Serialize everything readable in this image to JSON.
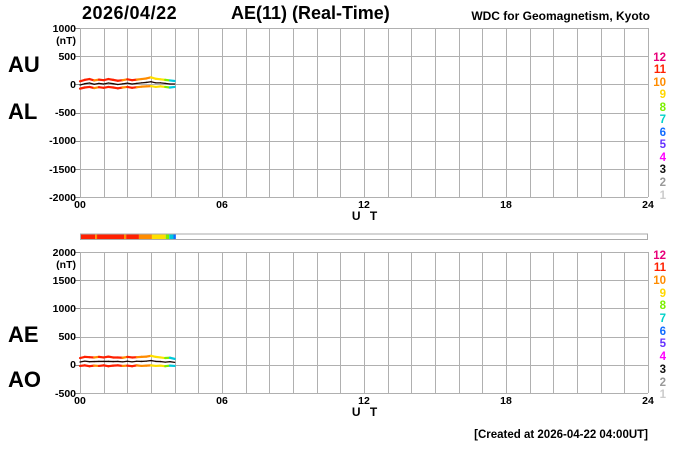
{
  "header": {
    "date": "2026/04/22",
    "title": "AE(11) (Real-Time)",
    "source": "WDC for Geomagnetism, Kyoto"
  },
  "footer": {
    "created_note": "[Created at 2026-04-22 04:00UT]"
  },
  "colors": {
    "grid": "#b0b0b0",
    "axis_tick": "#8c8c8c",
    "trace_overlap": "#1d0600",
    "bar_border": "#aaaaaa",
    "bar_fill": "#ffffff",
    "station_legend": [
      {
        "count": "12",
        "color": "#e8007a"
      },
      {
        "count": "11",
        "color": "#ff2000"
      },
      {
        "count": "10",
        "color": "#ff8c00"
      },
      {
        "count": "9",
        "color": "#ffd700"
      },
      {
        "count": "8",
        "color": "#7cf000"
      },
      {
        "count": "7",
        "color": "#00d2c8"
      },
      {
        "count": "6",
        "color": "#0f6bff"
      },
      {
        "count": "5",
        "color": "#6633ff"
      },
      {
        "count": "4",
        "color": "#ff00ff"
      },
      {
        "count": "3",
        "color": "#111111"
      },
      {
        "count": "2",
        "color": "#999999"
      },
      {
        "count": "1",
        "color": "#cccccc"
      }
    ]
  },
  "stations_bar": {
    "description": "number of available stations vs UT hour",
    "segments": [
      {
        "from": 0.0,
        "to": 0.64,
        "color": "#ff2000"
      },
      {
        "from": 0.64,
        "to": 0.72,
        "color": "#ff8c00"
      },
      {
        "from": 0.72,
        "to": 1.86,
        "color": "#ff2000"
      },
      {
        "from": 1.86,
        "to": 1.95,
        "color": "#ff8c00"
      },
      {
        "from": 1.95,
        "to": 2.49,
        "color": "#ff2000"
      },
      {
        "from": 2.49,
        "to": 3.04,
        "color": "#ff8c00"
      },
      {
        "from": 3.04,
        "to": 3.62,
        "color": "#ffe000"
      },
      {
        "from": 3.62,
        "to": 3.77,
        "color": "#7cf000"
      },
      {
        "from": 3.77,
        "to": 3.95,
        "color": "#00c8dc"
      },
      {
        "from": 3.95,
        "to": 4.05,
        "color": "#0f6bff"
      }
    ]
  },
  "chart_data": {
    "type": "line",
    "title": "AE(11) (Real-Time)",
    "date": "2026/04/22",
    "x_unit": "hours UT",
    "xlim": [
      0,
      24
    ],
    "data_end_hour": 4.05,
    "panels": [
      {
        "indices": "AU / AL",
        "unit": "(nT)",
        "ylim": [
          -2000,
          1000
        ],
        "ystep": 500,
        "yticks": [
          "1000",
          "500",
          "0",
          "-500",
          "-1000",
          "-1500",
          "-2000"
        ],
        "xticks": [
          {
            "h": 0,
            "label": "00"
          },
          {
            "h": 6,
            "label": "06"
          },
          {
            "h": 12,
            "label": "12"
          },
          {
            "h": 18,
            "label": "18"
          },
          {
            "h": 24,
            "label": "24"
          }
        ],
        "xlabel": "U T",
        "series": [
          {
            "name": "AU",
            "points": [
              [
                0,
                55
              ],
              [
                0.2,
                80
              ],
              [
                0.4,
                95
              ],
              [
                0.6,
                70
              ],
              [
                0.8,
                85
              ],
              [
                1,
                75
              ],
              [
                1.2,
                95
              ],
              [
                1.4,
                80
              ],
              [
                1.6,
                65
              ],
              [
                1.8,
                75
              ],
              [
                2,
                90
              ],
              [
                2.2,
                75
              ],
              [
                2.4,
                85
              ],
              [
                2.6,
                95
              ],
              [
                2.8,
                105
              ],
              [
                3,
                125
              ],
              [
                3.2,
                100
              ],
              [
                3.4,
                90
              ],
              [
                3.6,
                80
              ],
              [
                3.8,
                70
              ],
              [
                4,
                60
              ]
            ]
          },
          {
            "name": "AL",
            "points": [
              [
                0,
                -75
              ],
              [
                0.2,
                -55
              ],
              [
                0.4,
                -45
              ],
              [
                0.6,
                -65
              ],
              [
                0.8,
                -50
              ],
              [
                1,
                -60
              ],
              [
                1.2,
                -45
              ],
              [
                1.4,
                -55
              ],
              [
                1.6,
                -70
              ],
              [
                1.8,
                -55
              ],
              [
                2,
                -45
              ],
              [
                2.2,
                -60
              ],
              [
                2.4,
                -50
              ],
              [
                2.6,
                -40
              ],
              [
                2.8,
                -35
              ],
              [
                3,
                -30
              ],
              [
                3.2,
                -45
              ],
              [
                3.4,
                -35
              ],
              [
                3.6,
                -45
              ],
              [
                3.8,
                -55
              ],
              [
                4,
                -45
              ]
            ]
          }
        ]
      },
      {
        "indices": "AE / AO",
        "unit": "(nT)",
        "ylim": [
          -500,
          2000
        ],
        "ystep": 500,
        "yticks": [
          "2000",
          "1500",
          "1000",
          "500",
          "0",
          "-500"
        ],
        "xticks": [
          {
            "h": 0,
            "label": "00"
          },
          {
            "h": 6,
            "label": "06"
          },
          {
            "h": 12,
            "label": "12"
          },
          {
            "h": 18,
            "label": "18"
          },
          {
            "h": 24,
            "label": "24"
          }
        ],
        "xlabel": "U T",
        "series": [
          {
            "name": "AE",
            "points": [
              [
                0,
                120
              ],
              [
                0.2,
                140
              ],
              [
                0.4,
                135
              ],
              [
                0.6,
                130
              ],
              [
                0.8,
                140
              ],
              [
                1,
                130
              ],
              [
                1.2,
                145
              ],
              [
                1.4,
                130
              ],
              [
                1.6,
                130
              ],
              [
                1.8,
                125
              ],
              [
                2,
                140
              ],
              [
                2.2,
                130
              ],
              [
                2.4,
                135
              ],
              [
                2.6,
                140
              ],
              [
                2.8,
                145
              ],
              [
                3,
                160
              ],
              [
                3.2,
                140
              ],
              [
                3.4,
                130
              ],
              [
                3.6,
                120
              ],
              [
                3.8,
                125
              ],
              [
                4,
                105
              ]
            ]
          },
          {
            "name": "AO",
            "points": [
              [
                0,
                -20
              ],
              [
                0.2,
                -10
              ],
              [
                0.4,
                -25
              ],
              [
                0.6,
                -15
              ],
              [
                0.8,
                -20
              ],
              [
                1,
                -10
              ],
              [
                1.2,
                -25
              ],
              [
                1.4,
                -15
              ],
              [
                1.6,
                -10
              ],
              [
                1.8,
                -20
              ],
              [
                2,
                -15
              ],
              [
                2.2,
                -25
              ],
              [
                2.4,
                -10
              ],
              [
                2.6,
                -20
              ],
              [
                2.8,
                -15
              ],
              [
                3,
                -10
              ],
              [
                3.2,
                -20
              ],
              [
                3.4,
                -15
              ],
              [
                3.6,
                -25
              ],
              [
                3.8,
                -15
              ],
              [
                4,
                -20
              ]
            ]
          }
        ]
      }
    ]
  }
}
